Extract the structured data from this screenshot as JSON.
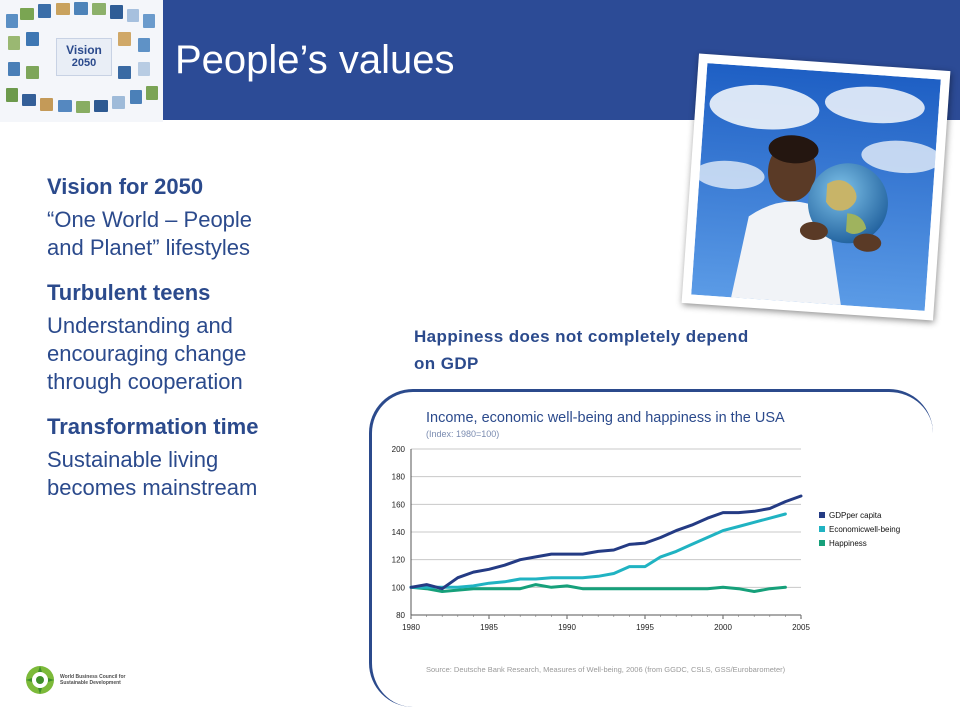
{
  "header": {
    "title": "People’s values",
    "logo_line1": "Vision",
    "logo_line2": "2050"
  },
  "sections": [
    {
      "heading": "Vision for 2050",
      "body_lines": [
        "“One World – People",
        "and Planet” lifestyles"
      ]
    },
    {
      "heading": "Turbulent teens",
      "body_lines": [
        "Understanding and",
        "encouraging change",
        "through cooperation"
      ]
    },
    {
      "heading": "Transformation time",
      "body_lines": [
        "Sustainable living",
        "becomes mainstream"
      ]
    }
  ],
  "happiness_title_lines": [
    "Happiness does not completely depend",
    "on GDP"
  ],
  "footer": {
    "org_lines": [
      "World Business Council for",
      "Sustainable Development"
    ]
  },
  "colors": {
    "brand_blue": "#2c4b96",
    "text_blue": "#2b4a8c",
    "gdp": "#243b84",
    "economic": "#20b3c2",
    "happiness": "#16a07a"
  },
  "chart_data": {
    "type": "line",
    "title": "Income, economic well-being and happiness in the USA",
    "subtitle": "(Index: 1980=100)",
    "source": "Source: Deutsche Bank Research, Measures of Well-being, 2006 (from GGDC, CSLS, GSS/Eurobarometer)",
    "xlim": [
      1980,
      2005
    ],
    "ylim": [
      80,
      200
    ],
    "xticks": [
      1980,
      1985,
      1990,
      1995,
      2000,
      2005
    ],
    "yticks": [
      80,
      100,
      120,
      140,
      160,
      180,
      200
    ],
    "grid": true,
    "legend_position": "right",
    "series": [
      {
        "name": "GDPper capita",
        "color": "#243b84",
        "x": [
          1980,
          1981,
          1982,
          1983,
          1984,
          1985,
          1986,
          1987,
          1988,
          1989,
          1990,
          1991,
          1992,
          1993,
          1994,
          1995,
          1996,
          1997,
          1998,
          1999,
          2000,
          2001,
          2002,
          2003,
          2004,
          2005
        ],
        "y": [
          100,
          102,
          99,
          107,
          111,
          113,
          116,
          120,
          122,
          124,
          124,
          124,
          126,
          127,
          131,
          132,
          136,
          141,
          145,
          150,
          154,
          154,
          155,
          157,
          162,
          166
        ]
      },
      {
        "name": "Economicwell-being",
        "color": "#20b3c2",
        "x": [
          1980,
          1981,
          1982,
          1983,
          1984,
          1985,
          1986,
          1987,
          1988,
          1989,
          1990,
          1991,
          1992,
          1993,
          1994,
          1995,
          1996,
          1997,
          1998,
          1999,
          2000,
          2001,
          2002,
          2003,
          2004
        ],
        "y": [
          100,
          100,
          100,
          100,
          101,
          103,
          104,
          106,
          106,
          107,
          107,
          107,
          108,
          110,
          115,
          115,
          122,
          126,
          131,
          136,
          141,
          144,
          147,
          150,
          153
        ]
      },
      {
        "name": "Happiness",
        "color": "#16a07a",
        "x": [
          1980,
          1981,
          1982,
          1983,
          1984,
          1985,
          1986,
          1987,
          1988,
          1989,
          1990,
          1991,
          1992,
          1993,
          1994,
          1995,
          1996,
          1997,
          1998,
          1999,
          2000,
          2001,
          2002,
          2003,
          2004
        ],
        "y": [
          100,
          99,
          97,
          98,
          99,
          99,
          99,
          99,
          102,
          100,
          101,
          99,
          99,
          99,
          99,
          99,
          99,
          99,
          99,
          99,
          100,
          99,
          97,
          99,
          100
        ]
      }
    ]
  }
}
